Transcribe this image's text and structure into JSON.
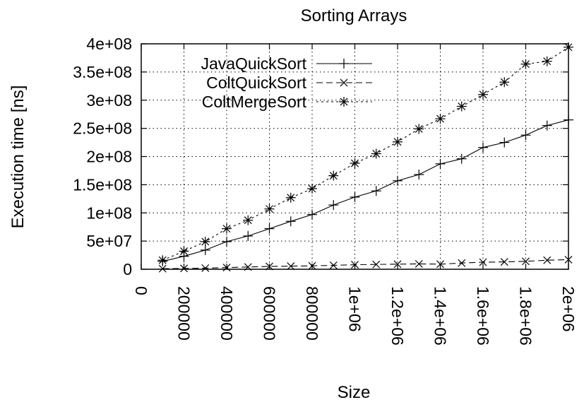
{
  "chart_data": {
    "type": "line",
    "title": "Sorting Arrays",
    "xlabel": "Size",
    "ylabel": "Execution time [ns]",
    "xlim": [
      0,
      2000000
    ],
    "ylim": [
      0,
      400000000
    ],
    "xticks": [
      0,
      200000,
      400000,
      600000,
      800000,
      1000000,
      1200000,
      1400000,
      1600000,
      1800000,
      2000000
    ],
    "xtick_labels": [
      "0",
      "200000",
      "400000",
      "600000",
      "800000",
      "1e+06",
      "1.2e+06",
      "1.4e+06",
      "1.6e+06",
      "1.8e+06",
      "2e+06"
    ],
    "yticks": [
      0,
      50000000,
      100000000,
      150000000,
      200000000,
      250000000,
      300000000,
      350000000,
      400000000
    ],
    "ytick_labels": [
      "0",
      "5e+07",
      "1e+08",
      "1.5e+08",
      "2e+08",
      "2.5e+08",
      "3e+08",
      "3.5e+08",
      "4e+08"
    ],
    "grid": true,
    "legend_position": "top-left",
    "x": [
      100000,
      200000,
      300000,
      400000,
      500000,
      600000,
      700000,
      800000,
      900000,
      1000000,
      1100000,
      1200000,
      1300000,
      1400000,
      1500000,
      1600000,
      1700000,
      1800000,
      1900000,
      2000000
    ],
    "series": [
      {
        "name": "JavaQuickSort",
        "marker": "plus",
        "dash": "solid",
        "values": [
          14000000,
          23000000,
          34000000,
          49000000,
          59000000,
          72000000,
          85000000,
          97000000,
          114000000,
          128000000,
          139000000,
          157000000,
          168000000,
          187000000,
          196000000,
          216000000,
          225000000,
          238000000,
          255000000,
          265000000
        ]
      },
      {
        "name": "ColtQuickSort",
        "marker": "cross",
        "dash": "dashed",
        "values": [
          1000000,
          1500000,
          2000000,
          3000000,
          4000000,
          5000000,
          5500000,
          6000000,
          7000000,
          8000000,
          8500000,
          9000000,
          9500000,
          9000000,
          11000000,
          12500000,
          13000000,
          14000000,
          16000000,
          17000000
        ]
      },
      {
        "name": "ColtMergeSort",
        "marker": "star",
        "dash": "dotted",
        "values": [
          16000000,
          32000000,
          49000000,
          72000000,
          87000000,
          107000000,
          127000000,
          143000000,
          166000000,
          188000000,
          205000000,
          226000000,
          249000000,
          267000000,
          289000000,
          310000000,
          332000000,
          364000000,
          369000000,
          394000000
        ]
      }
    ]
  }
}
